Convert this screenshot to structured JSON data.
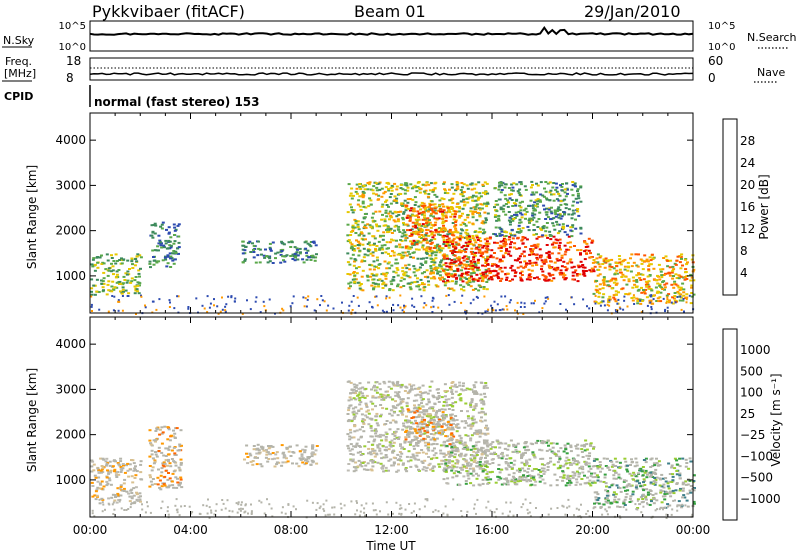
{
  "header": {
    "title": "Pykkvibaer (fitACF)",
    "beam": "Beam 01",
    "date": "29/Jan/2010"
  },
  "strip_labels": {
    "nsky": "N.Sky",
    "nsky_top": "10^5",
    "nsky_bottom": "10^0",
    "nsearch": "N.Search",
    "nsearch_top": "10^5",
    "nsearch_bottom": "10^0",
    "freq_line1": "Freq.",
    "freq_line2": "[MHz]",
    "freq_top": "18",
    "freq_bottom": "8",
    "nave": "Nave",
    "nave_top": "60",
    "nave_bottom": "0",
    "cpid": "CPID",
    "cpid_text": "normal (fast stereo) 153"
  },
  "colors": {
    "power_scale": [
      "#1a1aff",
      "#2d4bb0",
      "#3d8a5c",
      "#5aa84a",
      "#e6c800",
      "#ff9900",
      "#ff5500",
      "#e00000"
    ],
    "velocity_scale": [
      "#2451b5",
      "#3d7f8a",
      "#36a040",
      "#9acd32",
      "#bebcb4",
      "#d8c090",
      "#ff9900",
      "#ff6600",
      "#e00000"
    ],
    "ground_scatter": "#b4b4aa"
  },
  "chart_data": [
    {
      "type": "heatmap",
      "name": "power",
      "xlabel": "",
      "ylabel": "Slant Range [km]",
      "x_ticks": [
        "00:00",
        "04:00",
        "08:00",
        "12:00",
        "16:00",
        "20:00",
        "00:00"
      ],
      "y_ticks": [
        "1000",
        "2000",
        "3000",
        "4000"
      ],
      "xlim_hours": [
        0,
        24
      ],
      "ylim_km": [
        180,
        4600
      ],
      "colorbar": {
        "label": "Power [dB]",
        "ticks": [
          "4",
          "8",
          "12",
          "16",
          "20",
          "24",
          "28"
        ],
        "range": [
          0,
          30
        ]
      },
      "echo_regions": [
        {
          "t": [
            0.0,
            2.0
          ],
          "r": [
            600,
            1500
          ],
          "level": 12
        },
        {
          "t": [
            2.3,
            3.5
          ],
          "r": [
            1200,
            2200
          ],
          "level": 8
        },
        {
          "t": [
            6.0,
            9.0
          ],
          "r": [
            1300,
            1800
          ],
          "level": 8
        },
        {
          "t": [
            10.2,
            15.8
          ],
          "r": [
            700,
            3100
          ],
          "level": 14
        },
        {
          "t": [
            12.5,
            14.5
          ],
          "r": [
            1600,
            2600
          ],
          "level": 22
        },
        {
          "t": [
            14.0,
            20.0
          ],
          "r": [
            900,
            1900
          ],
          "level": 26
        },
        {
          "t": [
            16.0,
            19.5
          ],
          "r": [
            1900,
            3100
          ],
          "level": 10
        },
        {
          "t": [
            20.0,
            24.0
          ],
          "r": [
            400,
            1500
          ],
          "level": 18
        }
      ]
    },
    {
      "type": "heatmap",
      "name": "velocity",
      "xlabel": "Time UT",
      "ylabel": "Slant Range [km]",
      "x_ticks": [
        "00:00",
        "04:00",
        "08:00",
        "12:00",
        "16:00",
        "20:00",
        "00:00"
      ],
      "y_ticks": [
        "1000",
        "2000",
        "3000",
        "4000"
      ],
      "xlim_hours": [
        0,
        24
      ],
      "ylim_km": [
        180,
        4600
      ],
      "colorbar": {
        "label": "Velocity [m s⁻¹]",
        "ticks": [
          "1000",
          "500",
          "100",
          "25",
          "−25",
          "−100",
          "−500",
          "−1000"
        ],
        "range": [
          -1000,
          1000
        ]
      },
      "echo_regions": [
        {
          "t": [
            0.0,
            2.0
          ],
          "r": [
            500,
            1500
          ],
          "v": -150
        },
        {
          "t": [
            2.3,
            3.6
          ],
          "r": [
            800,
            2200
          ],
          "v": -200
        },
        {
          "t": [
            6.0,
            9.0
          ],
          "r": [
            1300,
            1800
          ],
          "v": -100
        },
        {
          "t": [
            10.2,
            15.8
          ],
          "r": [
            1200,
            3200
          ],
          "v": 0
        },
        {
          "t": [
            12.5,
            14.5
          ],
          "r": [
            1800,
            2600
          ],
          "v": -300
        },
        {
          "t": [
            14.0,
            20.0
          ],
          "r": [
            900,
            1900
          ],
          "v": 150
        },
        {
          "t": [
            20.0,
            24.0
          ],
          "r": [
            400,
            1500
          ],
          "v": 200
        }
      ]
    }
  ]
}
